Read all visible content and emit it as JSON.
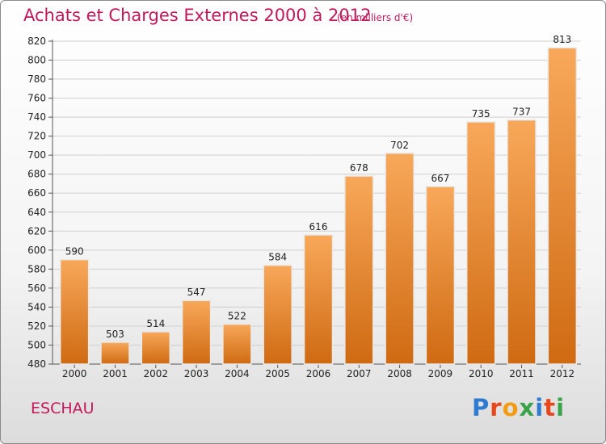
{
  "header": {
    "title": "Achats et Charges Externes 2000 à 2012",
    "subtitle": "(en milliers d'€)"
  },
  "footer": {
    "place": "ESCHAU",
    "logo_text": "Proxiti",
    "logo_colors": [
      "#2e7bd1",
      "#e8461b",
      "#f39c12",
      "#3aa34a",
      "#2e7bd1",
      "#e8461b",
      "#3aa34a"
    ]
  },
  "colors": {
    "bar_top": "#f8a85a",
    "bar_bottom": "#cf6a12",
    "grid": "#cfcfcf",
    "text": "#222222"
  },
  "chart_data": {
    "type": "bar",
    "title": "Achats et Charges Externes 2000 à 2012",
    "subtitle": "(en milliers d'€)",
    "categories": [
      "2000",
      "2001",
      "2002",
      "2003",
      "2004",
      "2005",
      "2006",
      "2007",
      "2008",
      "2009",
      "2010",
      "2011",
      "2012"
    ],
    "values": [
      590,
      503,
      514,
      547,
      522,
      584,
      616,
      678,
      702,
      667,
      735,
      737,
      813
    ],
    "ylim": [
      480,
      820
    ],
    "ytick_step": 20,
    "grid": true,
    "xlabel": "",
    "ylabel": ""
  }
}
